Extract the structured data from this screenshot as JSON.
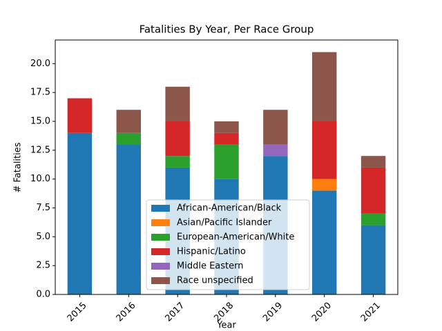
{
  "chart_data": {
    "type": "stacked_bar",
    "title": "Fatalities By Year, Per Race Group",
    "x_label": "Year",
    "y_label": "# Fatalities",
    "categories": [
      "2015",
      "2016",
      "2017",
      "2018",
      "2019",
      "2020",
      "2021"
    ],
    "series": [
      {
        "name": "African-American/Black",
        "color": "#1f77b4",
        "values": [
          14,
          13,
          11,
          10,
          12,
          9,
          6
        ]
      },
      {
        "name": "Asian/Pacific Islander",
        "color": "#ff7f0e",
        "values": [
          0,
          0,
          0,
          0,
          0,
          1,
          0
        ]
      },
      {
        "name": "European-American/White",
        "color": "#2ca02c",
        "values": [
          0,
          1,
          1,
          3,
          0,
          0,
          1
        ]
      },
      {
        "name": "Hispanic/Latino",
        "color": "#d62728",
        "values": [
          3,
          0,
          3,
          1,
          0,
          5,
          4
        ]
      },
      {
        "name": "Middle Eastern",
        "color": "#9467bd",
        "values": [
          0,
          0,
          0,
          0,
          1,
          0,
          0
        ]
      },
      {
        "name": "Race unspecified",
        "color": "#8c564b",
        "values": [
          0,
          2,
          3,
          1,
          3,
          6,
          1
        ]
      }
    ],
    "ylim": [
      0,
      22.05
    ],
    "yticks": [
      {
        "value": 0,
        "label": "0.0"
      },
      {
        "value": 2.5,
        "label": "2.5"
      },
      {
        "value": 5,
        "label": "5.0"
      },
      {
        "value": 7.5,
        "label": "7.5"
      },
      {
        "value": 10,
        "label": "10.0"
      },
      {
        "value": 12.5,
        "label": "12.5"
      },
      {
        "value": 15,
        "label": "15.0"
      },
      {
        "value": 17.5,
        "label": "17.5"
      },
      {
        "value": 20,
        "label": "20.0"
      }
    ],
    "legend": "lower center"
  }
}
